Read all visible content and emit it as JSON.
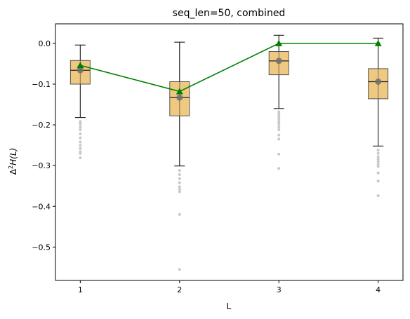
{
  "chart_data": {
    "type": "box",
    "title": "seq_len=50, combined",
    "xlabel": "L",
    "ylabel": "Δ²H(L)",
    "ylabel_parts": {
      "base": "Δ",
      "sup": "2",
      "rest": "H(L)"
    },
    "categories": [
      "1",
      "2",
      "3",
      "4"
    ],
    "x_ticks": [
      1,
      2,
      3,
      4
    ],
    "x_tick_labels": [
      "1",
      "2",
      "3",
      "4"
    ],
    "xlim": [
      0.75,
      4.25
    ],
    "y_ticks": [
      0.0,
      -0.1,
      -0.2,
      -0.3,
      -0.4,
      -0.5
    ],
    "y_tick_labels": [
      "0.0",
      "−0.1",
      "−0.2",
      "−0.3",
      "−0.4",
      "−0.5"
    ],
    "ylim": [
      -0.582,
      0.048
    ],
    "grid": false,
    "legend": "none",
    "box_color": "#e8b04b",
    "line_color": "#008000",
    "boxes": [
      {
        "x": 1,
        "q1": -0.1,
        "median": -0.066,
        "q3": -0.042,
        "mean": -0.066,
        "whisker_low": -0.182,
        "whisker_high": -0.004,
        "outliers": [
          -0.192,
          -0.198,
          -0.205,
          -0.212,
          -0.222,
          -0.232,
          -0.242,
          -0.25,
          -0.258,
          -0.266,
          -0.27,
          -0.281
        ]
      },
      {
        "x": 2,
        "q1": -0.178,
        "median": -0.133,
        "q3": -0.094,
        "mean": -0.133,
        "whisker_low": -0.301,
        "whisker_high": 0.003,
        "outliers": [
          -0.312,
          -0.322,
          -0.332,
          -0.342,
          -0.352,
          -0.358,
          -0.364,
          -0.42,
          -0.555
        ]
      },
      {
        "x": 3,
        "q1": -0.077,
        "median": -0.043,
        "q3": -0.02,
        "mean": -0.043,
        "whisker_low": -0.16,
        "whisker_high": 0.02,
        "outliers": [
          -0.168,
          -0.174,
          -0.18,
          -0.186,
          -0.192,
          -0.198,
          -0.205,
          -0.212,
          -0.225,
          -0.235,
          -0.272,
          -0.307
        ]
      },
      {
        "x": 4,
        "q1": -0.136,
        "median": -0.094,
        "q3": -0.062,
        "mean": -0.094,
        "whisker_low": -0.252,
        "whisker_high": 0.013,
        "outliers": [
          -0.262,
          -0.27,
          -0.278,
          -0.284,
          -0.29,
          -0.296,
          -0.302,
          -0.318,
          -0.338,
          -0.374
        ]
      }
    ],
    "series": [
      {
        "type": "line",
        "marker": "triangle",
        "x": [
          1,
          2,
          3,
          4
        ],
        "values": [
          -0.054,
          -0.118,
          0.0,
          0.0
        ]
      }
    ]
  }
}
